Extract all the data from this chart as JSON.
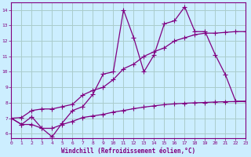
{
  "x": [
    0,
    1,
    2,
    3,
    4,
    5,
    6,
    7,
    8,
    9,
    10,
    11,
    12,
    13,
    14,
    15,
    16,
    17,
    18,
    19,
    20,
    21,
    22,
    23
  ],
  "line1": [
    7.0,
    6.6,
    7.1,
    6.35,
    5.8,
    6.7,
    7.5,
    7.75,
    8.55,
    9.85,
    10.0,
    14.0,
    12.2,
    10.0,
    11.1,
    13.1,
    13.3,
    14.2,
    12.6,
    12.6,
    11.1,
    9.8,
    8.1,
    8.1
  ],
  "line2": [
    7.0,
    7.05,
    7.5,
    7.6,
    7.6,
    7.75,
    7.9,
    8.5,
    8.8,
    9.0,
    9.5,
    10.2,
    10.5,
    11.0,
    11.3,
    11.55,
    12.0,
    12.2,
    12.4,
    12.5,
    12.5,
    12.55,
    12.6,
    12.6
  ],
  "line3": [
    7.0,
    6.6,
    6.6,
    6.35,
    6.35,
    6.6,
    6.8,
    7.05,
    7.15,
    7.25,
    7.4,
    7.5,
    7.62,
    7.72,
    7.8,
    7.88,
    7.93,
    7.97,
    8.0,
    8.02,
    8.05,
    8.07,
    8.08,
    8.08
  ],
  "color": "#800080",
  "bg_color": "#cceeff",
  "grid_color": "#aacccc",
  "xlabel": "Windchill (Refroidissement éolien,°C)",
  "xlim": [
    0,
    23
  ],
  "ylim": [
    5.7,
    14.5
  ],
  "yticks": [
    6,
    7,
    8,
    9,
    10,
    11,
    12,
    13,
    14
  ],
  "xticks": [
    0,
    1,
    2,
    3,
    4,
    5,
    6,
    7,
    8,
    9,
    10,
    11,
    12,
    13,
    14,
    15,
    16,
    17,
    18,
    19,
    20,
    21,
    22,
    23
  ]
}
